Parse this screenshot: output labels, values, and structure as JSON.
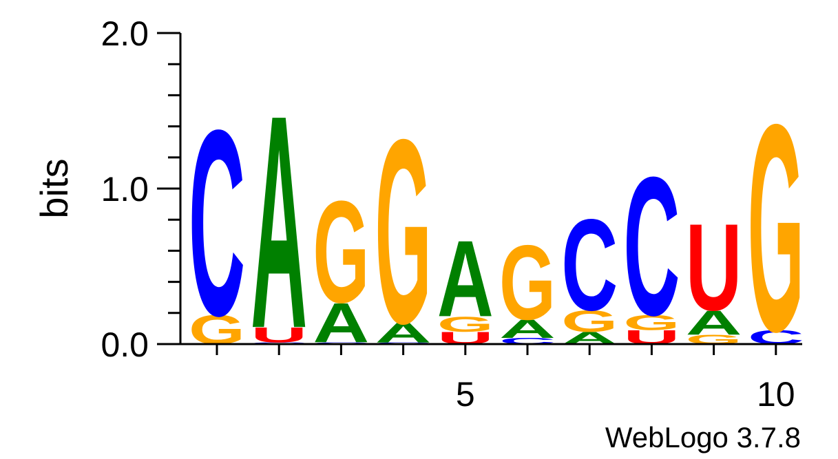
{
  "chart_data": {
    "type": "sequence-logo",
    "ylabel": "bits",
    "ylim": [
      0,
      2
    ],
    "y_ticks": [
      "0.0",
      "1.0",
      "2.0"
    ],
    "x_ticks": [
      {
        "pos": 5,
        "label": "5"
      },
      {
        "pos": 10,
        "label": "10"
      }
    ],
    "credit": "WebLogo 3.7.8",
    "colors": {
      "A": "#008000",
      "C": "#0000ff",
      "G": "#ffa500",
      "U": "#ff0000"
    },
    "positions": [
      {
        "pos": 1,
        "stack": [
          {
            "letter": "G",
            "bits": 0.19
          },
          {
            "letter": "C",
            "bits": 1.22
          }
        ]
      },
      {
        "pos": 2,
        "stack": [
          {
            "letter": "C",
            "bits": 0.01
          },
          {
            "letter": "U",
            "bits": 0.1
          },
          {
            "letter": "A",
            "bits": 1.4
          }
        ]
      },
      {
        "pos": 3,
        "stack": [
          {
            "letter": "C",
            "bits": 0.01
          },
          {
            "letter": "A",
            "bits": 0.26
          },
          {
            "letter": "G",
            "bits": 0.67
          }
        ]
      },
      {
        "pos": 4,
        "stack": [
          {
            "letter": "C",
            "bits": 0.01
          },
          {
            "letter": "A",
            "bits": 0.13
          },
          {
            "letter": "G",
            "bits": 1.21
          }
        ]
      },
      {
        "pos": 5,
        "stack": [
          {
            "letter": "U",
            "bits": 0.08
          },
          {
            "letter": "G",
            "bits": 0.1
          },
          {
            "letter": "A",
            "bits": 0.5
          }
        ]
      },
      {
        "pos": 6,
        "stack": [
          {
            "letter": "C",
            "bits": 0.04
          },
          {
            "letter": "A",
            "bits": 0.12
          },
          {
            "letter": "G",
            "bits": 0.49
          }
        ]
      },
      {
        "pos": 7,
        "stack": [
          {
            "letter": "A",
            "bits": 0.08
          },
          {
            "letter": "G",
            "bits": 0.14
          },
          {
            "letter": "C",
            "bits": 0.6
          }
        ]
      },
      {
        "pos": 8,
        "stack": [
          {
            "letter": "U",
            "bits": 0.09
          },
          {
            "letter": "G",
            "bits": 0.1
          },
          {
            "letter": "C",
            "bits": 0.91
          }
        ]
      },
      {
        "pos": 9,
        "stack": [
          {
            "letter": "G",
            "bits": 0.06
          },
          {
            "letter": "A",
            "bits": 0.16
          },
          {
            "letter": "U",
            "bits": 0.57
          }
        ]
      },
      {
        "pos": 10,
        "stack": [
          {
            "letter": "C",
            "bits": 0.09
          },
          {
            "letter": "G",
            "bits": 1.36
          }
        ]
      }
    ]
  }
}
